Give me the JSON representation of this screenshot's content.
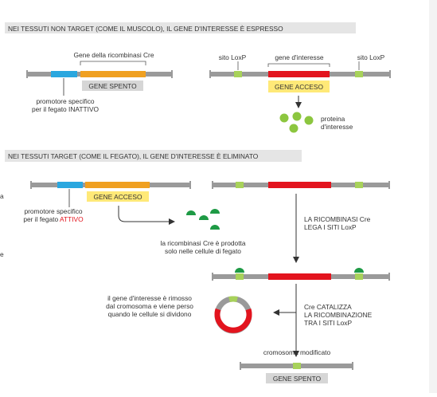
{
  "colors": {
    "grey_bar": "#9a9a9a",
    "blue_promoter": "#2aa7df",
    "orange_cre": "#f0a020",
    "red_gene": "#e3141e",
    "lime_loxp": "#a8d25a",
    "green_protein": "#8cc63f",
    "dark_green_cre": "#1e9a45",
    "label_yellow": "#ffe978",
    "label_grey": "#d6d6d6",
    "header_bg": "#e5e5e5",
    "text": "#333333",
    "red_text": "#e3141e"
  },
  "section1": {
    "header": "NEI TESSUTI NON TARGET (COME IL MUSCOLO), IL GENE D'INTERESSE È ESPRESSO",
    "cre_gene_label": "Gene della ricombinasi Cre",
    "gene_off_label": "GENE SPENTO",
    "promoter_label_line1": "promotore specifico",
    "promoter_label_line2_prefix": "per il fegato ",
    "promoter_label_line2_state": "INATTIVO",
    "loxp_left": "sito LoxP",
    "gene_of_interest": "gene d'interesse",
    "loxp_right": "sito LoxP",
    "gene_on_label": "GENE ACCESO",
    "protein_label_line1": "proteina",
    "protein_label_line2": "d'interesse"
  },
  "section2": {
    "header": "NEI TESSUTI TARGET (COME IL FEGATO), IL GENE D'INTERESSE È ELIMINATO",
    "gene_on_label": "GENE ACCESO",
    "promoter_label_line1": "promotore specifico",
    "promoter_label_line2_prefix": "per il fegato ",
    "promoter_label_line2_state": "ATTIVO",
    "cre_produced_line1": "la ricombinasi Cre è prodotta",
    "cre_produced_line2": "solo nelle cellule di fegato",
    "binds_line1": "LA RICOMBINASI Cre",
    "binds_line2": "LEGA I SITI LoxP",
    "removed_line1": "il gene d'interesse è rimosso",
    "removed_line2": "dal cromosoma e viene perso",
    "removed_line3": "quando le cellule si dividono",
    "catalyze_line1": "Cre CATALIZZA",
    "catalyze_line2": "LA RICOMBINAZIONE",
    "catalyze_line3": "TRA I SITI LoxP",
    "modified_label": "cromosoma modificato",
    "gene_off_label": "GENE SPENTO"
  },
  "edge_fragments": [
    "a",
    "e"
  ]
}
